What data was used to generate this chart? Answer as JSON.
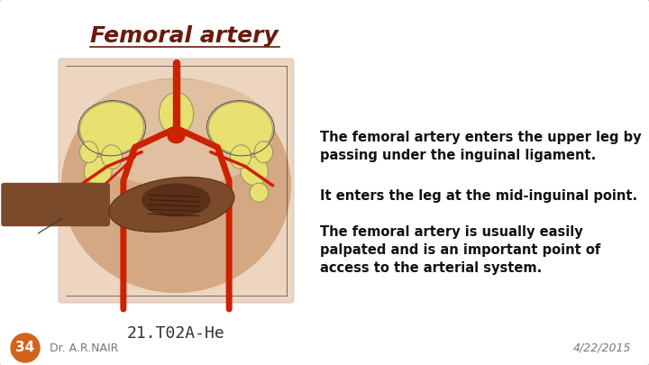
{
  "title": "Femoral artery",
  "title_color": "#6B1A0A",
  "title_fontsize": 18,
  "bg_color": "#FFFFFF",
  "slide_bg": "#FFFFFF",
  "para1": "The femoral artery enters the upper leg by\npassing under the inguinal ligament.",
  "para2": "It enters the leg at the mid-inguinal point.",
  "para3": "The femoral artery is usually easily\npalpated and is an important point of\naccess to the arterial system.",
  "text_color": "#111111",
  "text_fontsize": 10.5,
  "label_code": "21.T02A-He",
  "label_code_fontsize": 13,
  "label_code_color": "#333333",
  "footer_left": "Dr. A.R.NAIR",
  "footer_right": "4/22/2015",
  "footer_color": "#777777",
  "footer_fontsize": 9,
  "badge_number": "34",
  "badge_color": "#D2631A",
  "badge_text_color": "#FFFFFF",
  "badge_fontsize": 11,
  "skin_color": "#C8967A",
  "skin_light": "#DEB89A",
  "bone_color": "#E8E070",
  "bone_edge": "#999966",
  "artery_color": "#CC2200",
  "hand_color": "#7A4A2A",
  "hand_dark": "#5A3018"
}
